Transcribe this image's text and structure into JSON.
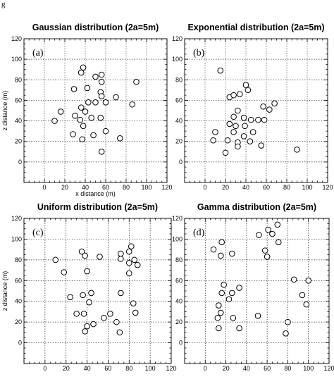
{
  "figure_label": "g",
  "chart_data": [
    {
      "type": "scatter",
      "title": "Gaussian distribution (2a=5m)",
      "panel_tag": "(a)",
      "xlabel": "x distance (m)",
      "ylabel": "z distance (m)",
      "xlim": [
        -20,
        120
      ],
      "ylim": [
        -20,
        120
      ],
      "xticks": [
        0,
        20,
        40,
        60,
        80,
        100,
        120
      ],
      "yticks": [
        0,
        20,
        40,
        60,
        80,
        100,
        120
      ],
      "grid": true,
      "points": [
        [
          38,
          92
        ],
        [
          36,
          87
        ],
        [
          50,
          83
        ],
        [
          56,
          85
        ],
        [
          56,
          78
        ],
        [
          42,
          72
        ],
        [
          29,
          71
        ],
        [
          90,
          78
        ],
        [
          55,
          68
        ],
        [
          56,
          64
        ],
        [
          70,
          63
        ],
        [
          43,
          58
        ],
        [
          50,
          58
        ],
        [
          60,
          58
        ],
        [
          36,
          53
        ],
        [
          30,
          45
        ],
        [
          35,
          41
        ],
        [
          40,
          49
        ],
        [
          46,
          43
        ],
        [
          55,
          43
        ],
        [
          16,
          49
        ],
        [
          10,
          40
        ],
        [
          86,
          56
        ],
        [
          38,
          35
        ],
        [
          28,
          27
        ],
        [
          48,
          26
        ],
        [
          37,
          22
        ],
        [
          60,
          30
        ],
        [
          74,
          23
        ],
        [
          56,
          10
        ]
      ]
    },
    {
      "type": "scatter",
      "title": "Exponential distribution (2a=5m)",
      "panel_tag": "(b)",
      "xlabel": "",
      "ylabel": "",
      "xlim": [
        -20,
        120
      ],
      "ylim": [
        -20,
        120
      ],
      "xticks": [
        0,
        20,
        40,
        60,
        80,
        100,
        120
      ],
      "yticks": [
        0,
        20,
        40,
        60,
        80,
        100,
        120
      ],
      "grid": true,
      "points": [
        [
          15,
          89
        ],
        [
          40,
          75
        ],
        [
          42,
          70
        ],
        [
          34,
          66
        ],
        [
          24,
          63
        ],
        [
          28,
          65
        ],
        [
          68,
          57
        ],
        [
          57,
          54
        ],
        [
          63,
          51
        ],
        [
          32,
          50
        ],
        [
          28,
          44
        ],
        [
          38,
          43
        ],
        [
          45,
          41
        ],
        [
          52,
          41
        ],
        [
          58,
          41
        ],
        [
          24,
          37
        ],
        [
          30,
          35
        ],
        [
          39,
          35
        ],
        [
          47,
          29
        ],
        [
          28,
          29
        ],
        [
          10,
          29
        ],
        [
          38,
          25
        ],
        [
          8,
          21
        ],
        [
          22,
          21
        ],
        [
          32,
          19
        ],
        [
          44,
          20
        ],
        [
          55,
          16
        ],
        [
          32,
          15
        ],
        [
          20,
          9
        ],
        [
          90,
          12
        ]
      ]
    },
    {
      "type": "scatter",
      "title": "Uniform distribution (2a=5m)",
      "panel_tag": "(c)",
      "xlabel": "",
      "ylabel": "z distance (m)",
      "xlim": [
        -20,
        120
      ],
      "ylim": [
        -20,
        120
      ],
      "xticks": [
        0,
        20,
        40,
        60,
        80,
        100,
        120
      ],
      "yticks": [
        0,
        20,
        40,
        60,
        80,
        100,
        120
      ],
      "grid": true,
      "points": [
        [
          82,
          93
        ],
        [
          80,
          88
        ],
        [
          72,
          86
        ],
        [
          35,
          88
        ],
        [
          38,
          84
        ],
        [
          52,
          83
        ],
        [
          10,
          80
        ],
        [
          72,
          81
        ],
        [
          85,
          80
        ],
        [
          80,
          77
        ],
        [
          88,
          75
        ],
        [
          18,
          68
        ],
        [
          40,
          69
        ],
        [
          80,
          67
        ],
        [
          44,
          48
        ],
        [
          72,
          48
        ],
        [
          36,
          46
        ],
        [
          24,
          44
        ],
        [
          42,
          39
        ],
        [
          84,
          38
        ],
        [
          30,
          28
        ],
        [
          37,
          28
        ],
        [
          62,
          28
        ],
        [
          56,
          24
        ],
        [
          46,
          18
        ],
        [
          40,
          16
        ],
        [
          68,
          20
        ],
        [
          86,
          29
        ],
        [
          38,
          11
        ],
        [
          71,
          10
        ]
      ]
    },
    {
      "type": "scatter",
      "title": "Gamma distribution (2a=5m)",
      "panel_tag": "(d)",
      "xlabel": "",
      "ylabel": "",
      "xlim": [
        -20,
        120
      ],
      "ylim": [
        -20,
        120
      ],
      "xticks": [
        0,
        20,
        40,
        60,
        80,
        100,
        120
      ],
      "yticks": [
        0,
        20,
        40,
        60,
        80,
        100,
        120
      ],
      "grid": true,
      "points": [
        [
          70,
          114
        ],
        [
          61,
          109
        ],
        [
          65,
          105
        ],
        [
          52,
          104
        ],
        [
          16,
          97
        ],
        [
          71,
          97
        ],
        [
          8,
          90
        ],
        [
          26,
          86
        ],
        [
          15,
          84
        ],
        [
          58,
          89
        ],
        [
          60,
          83
        ],
        [
          86,
          61
        ],
        [
          100,
          60
        ],
        [
          18,
          56
        ],
        [
          33,
          53
        ],
        [
          16,
          48
        ],
        [
          26,
          48
        ],
        [
          94,
          46
        ],
        [
          23,
          42
        ],
        [
          13,
          36
        ],
        [
          98,
          37
        ],
        [
          15,
          29
        ],
        [
          12,
          24
        ],
        [
          51,
          26
        ],
        [
          27,
          24
        ],
        [
          80,
          20
        ],
        [
          13,
          14
        ],
        [
          33,
          14
        ],
        [
          78,
          9
        ]
      ]
    }
  ]
}
